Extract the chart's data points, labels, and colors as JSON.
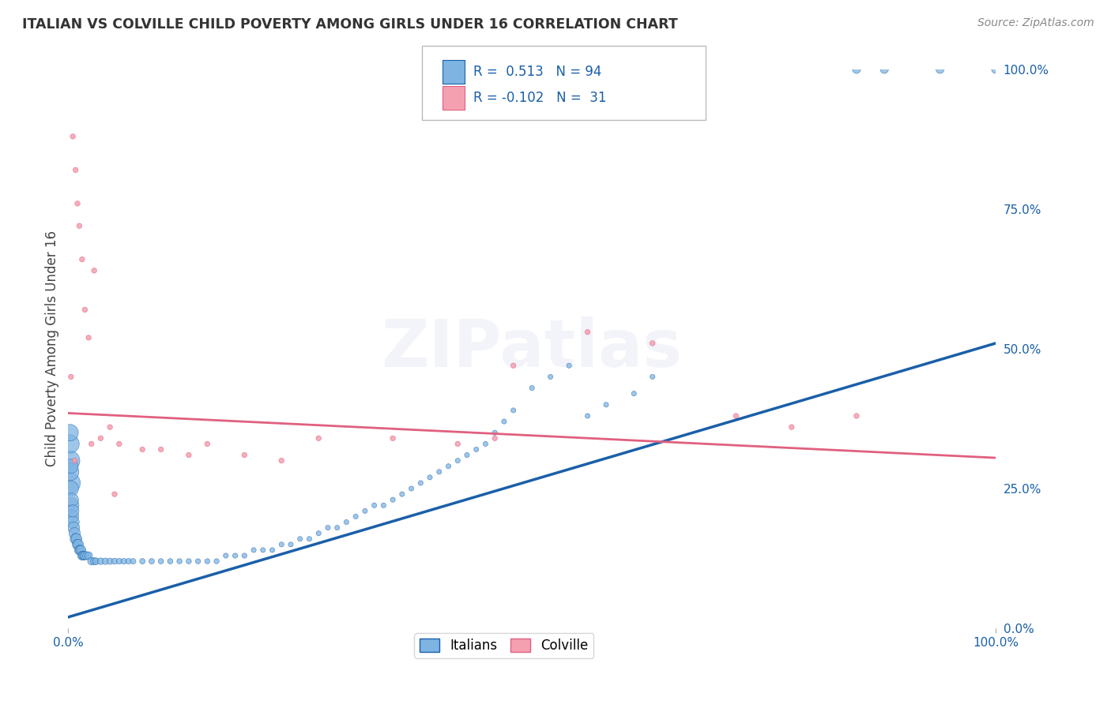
{
  "title": "ITALIAN VS COLVILLE CHILD POVERTY AMONG GIRLS UNDER 16 CORRELATION CHART",
  "source": "Source: ZipAtlas.com",
  "ylabel": "Child Poverty Among Girls Under 16",
  "xlim": [
    0,
    1
  ],
  "ylim": [
    0,
    1
  ],
  "ytick_vals": [
    0.0,
    0.25,
    0.5,
    0.75,
    1.0
  ],
  "ytick_labels": [
    "0.0%",
    "25.0%",
    "50.0%",
    "75.0%",
    "100.0%"
  ],
  "legend_r_italian": "0.513",
  "legend_n_italian": "94",
  "legend_r_colville": "-0.102",
  "legend_n_colville": "31",
  "italian_color": "#7EB4E2",
  "colville_color": "#F4A0B0",
  "line_italian_color": "#1A5FA8",
  "line_colville_color": "#E06080",
  "background_color": "#FFFFFF",
  "grid_color": "#CCCCCC",
  "italian_x": [
    0.002,
    0.002,
    0.002,
    0.002,
    0.002,
    0.003,
    0.003,
    0.003,
    0.004,
    0.004,
    0.005,
    0.005,
    0.006,
    0.007,
    0.008,
    0.009,
    0.01,
    0.011,
    0.012,
    0.013,
    0.014,
    0.015,
    0.016,
    0.017,
    0.018,
    0.02,
    0.022,
    0.025,
    0.028,
    0.03,
    0.035,
    0.04,
    0.045,
    0.05,
    0.055,
    0.06,
    0.065,
    0.07,
    0.08,
    0.09,
    0.1,
    0.11,
    0.12,
    0.13,
    0.14,
    0.15,
    0.16,
    0.17,
    0.18,
    0.19,
    0.2,
    0.21,
    0.22,
    0.23,
    0.24,
    0.25,
    0.26,
    0.27,
    0.28,
    0.29,
    0.3,
    0.31,
    0.32,
    0.33,
    0.34,
    0.35,
    0.36,
    0.37,
    0.38,
    0.39,
    0.4,
    0.41,
    0.42,
    0.43,
    0.44,
    0.45,
    0.46,
    0.47,
    0.48,
    0.5,
    0.52,
    0.54,
    0.56,
    0.58,
    0.61,
    0.63,
    0.85,
    0.88,
    0.94,
    1.0
  ],
  "italian_y": [
    0.26,
    0.3,
    0.33,
    0.28,
    0.35,
    0.22,
    0.25,
    0.29,
    0.2,
    0.23,
    0.19,
    0.21,
    0.18,
    0.17,
    0.16,
    0.16,
    0.15,
    0.15,
    0.14,
    0.14,
    0.14,
    0.13,
    0.13,
    0.13,
    0.13,
    0.13,
    0.13,
    0.12,
    0.12,
    0.12,
    0.12,
    0.12,
    0.12,
    0.12,
    0.12,
    0.12,
    0.12,
    0.12,
    0.12,
    0.12,
    0.12,
    0.12,
    0.12,
    0.12,
    0.12,
    0.12,
    0.12,
    0.13,
    0.13,
    0.13,
    0.14,
    0.14,
    0.14,
    0.15,
    0.15,
    0.16,
    0.16,
    0.17,
    0.18,
    0.18,
    0.19,
    0.2,
    0.21,
    0.22,
    0.22,
    0.23,
    0.24,
    0.25,
    0.26,
    0.27,
    0.28,
    0.29,
    0.3,
    0.31,
    0.32,
    0.33,
    0.35,
    0.37,
    0.39,
    0.43,
    0.45,
    0.47,
    0.38,
    0.4,
    0.42,
    0.45,
    1.0,
    1.0,
    1.0,
    1.0
  ],
  "italian_sizes": [
    350,
    320,
    280,
    260,
    230,
    210,
    190,
    170,
    155,
    145,
    135,
    125,
    115,
    108,
    100,
    95,
    90,
    85,
    80,
    76,
    72,
    68,
    64,
    61,
    58,
    54,
    50,
    46,
    43,
    40,
    37,
    35,
    33,
    31,
    29,
    28,
    27,
    26,
    25,
    25,
    24,
    24,
    23,
    23,
    22,
    22,
    22,
    21,
    21,
    21,
    20,
    20,
    20,
    20,
    20,
    20,
    20,
    20,
    20,
    20,
    20,
    20,
    20,
    20,
    20,
    20,
    20,
    20,
    20,
    20,
    20,
    20,
    20,
    20,
    20,
    20,
    20,
    20,
    20,
    20,
    20,
    20,
    20,
    20,
    20,
    20,
    55,
    55,
    55,
    55
  ],
  "colville_x": [
    0.005,
    0.008,
    0.01,
    0.012,
    0.015,
    0.018,
    0.022,
    0.028,
    0.035,
    0.045,
    0.055,
    0.08,
    0.1,
    0.13,
    0.15,
    0.19,
    0.23,
    0.27,
    0.35,
    0.42,
    0.46,
    0.48,
    0.56,
    0.63,
    0.72,
    0.78,
    0.85,
    0.003,
    0.007,
    0.025,
    0.05
  ],
  "colville_y": [
    0.88,
    0.82,
    0.76,
    0.72,
    0.66,
    0.57,
    0.52,
    0.64,
    0.34,
    0.36,
    0.33,
    0.32,
    0.32,
    0.31,
    0.33,
    0.31,
    0.3,
    0.34,
    0.34,
    0.33,
    0.34,
    0.47,
    0.53,
    0.51,
    0.38,
    0.36,
    0.38,
    0.45,
    0.3,
    0.33,
    0.24
  ],
  "colville_sizes": [
    22,
    22,
    22,
    22,
    22,
    22,
    22,
    22,
    22,
    22,
    22,
    22,
    22,
    22,
    22,
    22,
    22,
    22,
    22,
    22,
    22,
    22,
    22,
    22,
    22,
    22,
    22,
    22,
    22,
    22,
    22
  ],
  "italian_trend_x": [
    0.0,
    1.0
  ],
  "italian_trend_y": [
    0.02,
    0.51
  ],
  "colville_trend_x": [
    0.0,
    1.0
  ],
  "colville_trend_y": [
    0.385,
    0.305
  ]
}
